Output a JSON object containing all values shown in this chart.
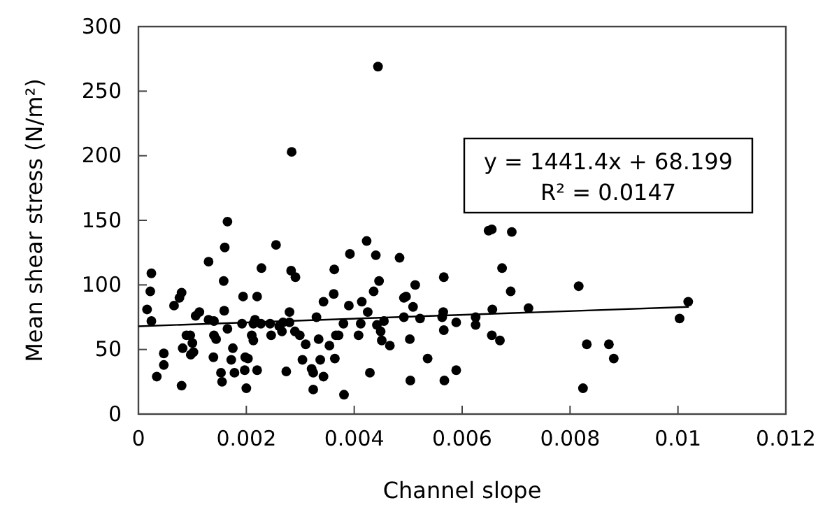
{
  "chart_data": {
    "type": "scatter",
    "xlabel": "Channel slope",
    "ylabel": "Mean shear stress (N/m²)",
    "xlim": [
      0,
      0.012
    ],
    "xticks": [
      0,
      0.002,
      0.004,
      0.006,
      0.008,
      0.01,
      0.012
    ],
    "ylim": [
      0,
      300
    ],
    "yticks": [
      0,
      50,
      100,
      150,
      200,
      250,
      300
    ],
    "grid": false,
    "marker": "circle",
    "annotations": [
      "y = 1441.4x + 68.199",
      "R² = 0.0147"
    ],
    "series": [
      {
        "color": "#000000",
        "x": [
          0.00016,
          0.00022,
          0.00024,
          0.00024,
          0.00034,
          0.00047,
          0.00047,
          0.00066,
          0.00076,
          0.0008,
          0.0008,
          0.00082,
          0.00089,
          0.00096,
          0.001,
          0.00102,
          0.00097,
          0.00106,
          0.00113,
          0.0013,
          0.0013,
          0.0014,
          0.0014,
          0.00144,
          0.00139,
          0.00153,
          0.00155,
          0.00158,
          0.0016,
          0.00165,
          0.00159,
          0.00165,
          0.00175,
          0.00172,
          0.00178,
          0.00192,
          0.00194,
          0.0022,
          0.00198,
          0.00203,
          0.00197,
          0.002,
          0.00213,
          0.00213,
          0.00216,
          0.0021,
          0.0022,
          0.00228,
          0.00227,
          0.00246,
          0.00244,
          0.00255,
          0.00261,
          0.00268,
          0.00266,
          0.00274,
          0.0028,
          0.0028,
          0.00284,
          0.00283,
          0.00291,
          0.0029,
          0.00299,
          0.0031,
          0.00304,
          0.00321,
          0.00324,
          0.00324,
          0.0033,
          0.00334,
          0.00337,
          0.00343,
          0.00343,
          0.00354,
          0.00362,
          0.00363,
          0.00366,
          0.00364,
          0.00371,
          0.00381,
          0.0038,
          0.0039,
          0.00392,
          0.00408,
          0.00412,
          0.00414,
          0.00423,
          0.00425,
          0.00429,
          0.00436,
          0.0044,
          0.00444,
          0.00446,
          0.00442,
          0.00451,
          0.00449,
          0.00455,
          0.00466,
          0.00484,
          0.00492,
          0.00496,
          0.00492,
          0.00503,
          0.00504,
          0.00509,
          0.00513,
          0.00522,
          0.00536,
          0.00563,
          0.00565,
          0.00566,
          0.00566,
          0.00567,
          0.00589,
          0.00589,
          0.00625,
          0.00625,
          0.00649,
          0.00655,
          0.00692,
          0.00674,
          0.0069,
          0.00656,
          0.00723,
          0.00655,
          0.0067,
          0.00816,
          0.00831,
          0.00872,
          0.00881,
          0.00824,
          0.01003,
          0.01019
        ],
        "values": [
          81,
          95,
          109,
          72,
          29,
          47,
          38,
          84,
          90,
          94,
          22,
          51,
          61,
          61,
          55,
          48,
          46,
          76,
          79,
          118,
          73,
          72,
          61,
          58,
          44,
          32,
          25,
          103,
          129,
          149,
          80,
          66,
          51,
          42,
          32,
          70,
          91,
          91,
          44,
          43,
          34,
          20,
          70,
          57,
          73,
          61,
          34,
          113,
          70,
          61,
          70,
          131,
          68,
          71,
          64,
          33,
          79,
          71,
          203,
          111,
          106,
          64,
          61,
          54,
          42,
          35,
          32,
          19,
          75,
          58,
          42,
          29,
          87,
          53,
          93,
          112,
          61,
          43,
          61,
          15,
          70,
          84,
          124,
          61,
          70,
          87,
          134,
          79,
          32,
          95,
          123,
          269,
          103,
          69,
          57,
          64,
          72,
          53,
          121,
          90,
          91,
          75,
          58,
          26,
          83,
          100,
          74,
          43,
          75,
          79,
          106,
          65,
          26,
          71,
          34,
          69,
          75,
          142,
          143,
          141,
          113,
          95,
          81,
          82,
          61,
          57,
          99,
          54,
          54,
          43,
          20,
          74,
          87
        ]
      },
      {
        "type": "line",
        "color": "#000000",
        "x": [
          0,
          0.0102
        ],
        "values": [
          68,
          83
        ],
        "line_style": "solid",
        "marker": "none"
      }
    ]
  }
}
